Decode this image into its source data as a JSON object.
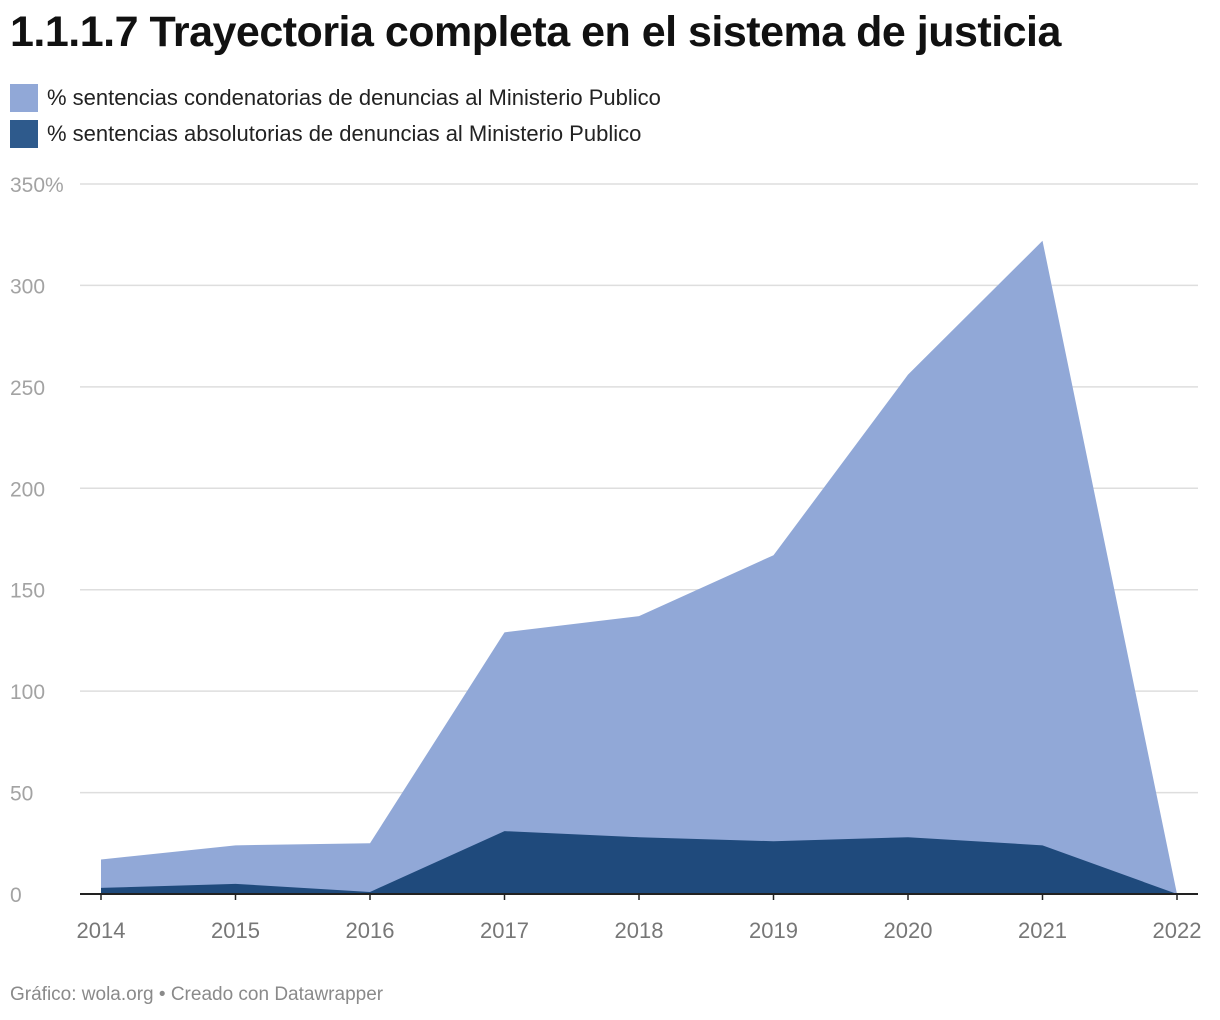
{
  "title": "1.1.1.7 Trayectoria completa en el sistema de justicia",
  "footer": "Gráfico: wola.org • Creado con Datawrapper",
  "chart_data": {
    "type": "area",
    "title": "1.1.1.7 Trayectoria completa en el sistema de justicia",
    "x": [
      "2014",
      "2015",
      "2016",
      "2017",
      "2018",
      "2019",
      "2020",
      "2021",
      "2022"
    ],
    "series": [
      {
        "name": "% sentencias condenatorias de denuncias al Ministerio Publico",
        "color": "#91a8d7",
        "values": [
          17,
          24,
          25,
          129,
          137,
          167,
          256,
          322,
          0
        ]
      },
      {
        "name": "% sentencias absolutorias de denuncias al Ministerio Publico",
        "color": "#1f4a7c",
        "values": [
          3,
          5,
          1,
          31,
          28,
          26,
          28,
          24,
          0
        ]
      }
    ],
    "legend_swatch_colors": [
      "#91a8d7",
      "#2e5a8c"
    ],
    "ylim": [
      0,
      350
    ],
    "yticks": [
      0,
      50,
      100,
      150,
      200,
      250,
      300,
      350
    ],
    "ytick_labels": [
      "0",
      "50",
      "100",
      "150",
      "200",
      "250",
      "300",
      "350%"
    ],
    "grid": true,
    "legend_position": "top-left",
    "xlabel": "",
    "ylabel": ""
  }
}
